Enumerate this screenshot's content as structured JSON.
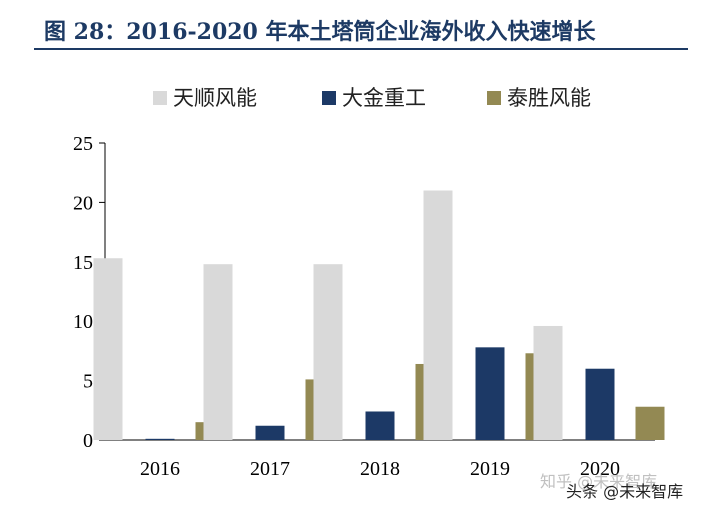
{
  "header": {
    "title": "图 28：2016-2020 年本土塔筒企业海外收入快速增长"
  },
  "chart_data": {
    "type": "bar",
    "categories": [
      "2016",
      "2017",
      "2018",
      "2019",
      "2020"
    ],
    "series": [
      {
        "name": "天顺风能",
        "color": "#d9d9d9",
        "values": [
          15.3,
          14.8,
          14.8,
          21.0,
          9.6
        ]
      },
      {
        "name": "大金重工",
        "color": "#1c3966",
        "values": [
          0.1,
          1.2,
          2.4,
          7.8,
          6.0
        ]
      },
      {
        "name": "泰胜风能",
        "color": "#938953",
        "values": [
          1.5,
          5.1,
          6.4,
          7.3,
          2.8
        ]
      }
    ],
    "yticks": [
      "0",
      "5",
      "10",
      "15",
      "20",
      "25"
    ],
    "ylim": [
      0,
      25
    ],
    "legend_position": "top",
    "grid": false
  },
  "watermark": {
    "faded": "知乎 @未来智库",
    "text": "头条 @未来智库"
  }
}
